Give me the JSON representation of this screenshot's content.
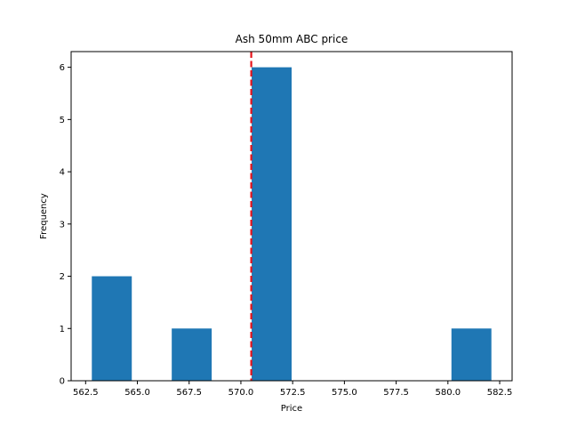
{
  "chart_data": {
    "type": "bar",
    "title": "Ash 50mm ABC price",
    "xlabel": "Price",
    "ylabel": "Frequency",
    "xlim": [
      561.8,
      583.1
    ],
    "ylim": [
      0,
      6.3
    ],
    "xticks": [
      562.5,
      565.0,
      567.5,
      570.0,
      572.5,
      575.0,
      577.5,
      580.0,
      582.5
    ],
    "xtick_labels": [
      "562.5",
      "565.0",
      "567.5",
      "570.0",
      "572.5",
      "575.0",
      "577.5",
      "580.0",
      "582.5"
    ],
    "yticks": [
      0,
      1,
      2,
      3,
      4,
      5,
      6
    ],
    "ytick_labels": [
      "0",
      "1",
      "2",
      "3",
      "4",
      "5",
      "6"
    ],
    "bins": [
      {
        "start": 562.8,
        "end": 564.73,
        "count": 2
      },
      {
        "start": 564.73,
        "end": 566.66,
        "count": 0
      },
      {
        "start": 566.66,
        "end": 568.59,
        "count": 1
      },
      {
        "start": 568.59,
        "end": 570.52,
        "count": 0
      },
      {
        "start": 570.52,
        "end": 572.45,
        "count": 6
      },
      {
        "start": 572.45,
        "end": 574.38,
        "count": 0
      },
      {
        "start": 574.38,
        "end": 576.31,
        "count": 0
      },
      {
        "start": 576.31,
        "end": 578.24,
        "count": 0
      },
      {
        "start": 578.24,
        "end": 580.17,
        "count": 0
      },
      {
        "start": 580.17,
        "end": 582.1,
        "count": 1
      }
    ],
    "reference_line": {
      "x": 570.5,
      "style": "dashed"
    },
    "grid": false,
    "colors": {
      "bar": "#1f77b4",
      "reference_line": "#e8141b",
      "axis": "#000000"
    }
  }
}
